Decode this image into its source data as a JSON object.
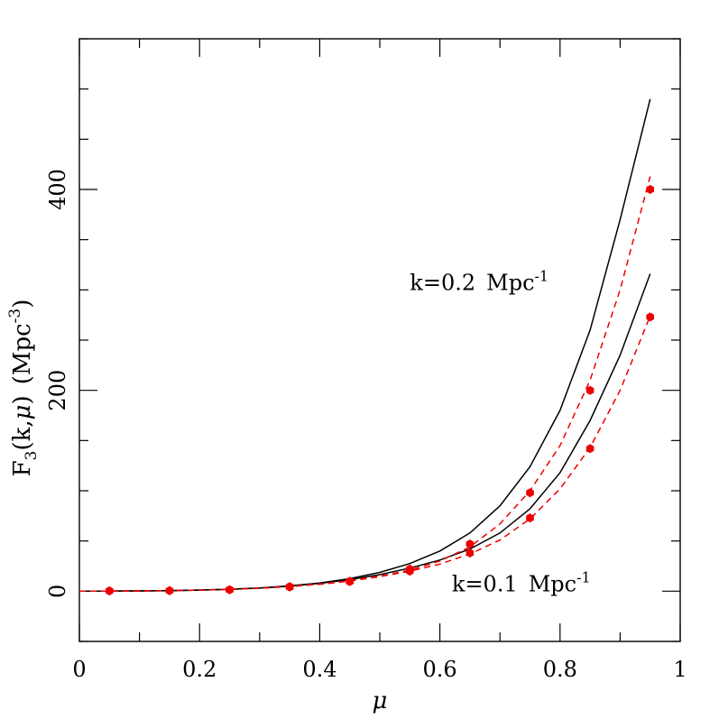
{
  "chart_data": {
    "type": "line",
    "xlabel": "μ",
    "ylabel_main": "F",
    "ylabel_sub": "3",
    "ylabel_args": "(k,",
    "ylabel_mu": "μ",
    "ylabel_close": ")",
    "ylabel_units": "(Mpc",
    "ylabel_units_exp": "-3",
    "ylabel_units_close": ")",
    "xlim": [
      0,
      1
    ],
    "ylim": [
      -50,
      550
    ],
    "x_ticks": [
      {
        "value": 0,
        "label": "0"
      },
      {
        "value": 0.2,
        "label": "0.2"
      },
      {
        "value": 0.4,
        "label": "0.4"
      },
      {
        "value": 0.6,
        "label": "0.6"
      },
      {
        "value": 0.8,
        "label": "0.8"
      },
      {
        "value": 1,
        "label": "1"
      }
    ],
    "x_minor_ticks": [
      0.1,
      0.3,
      0.5,
      0.7,
      0.9
    ],
    "y_ticks": [
      {
        "value": 0,
        "label": "0"
      },
      {
        "value": 200,
        "label": "200"
      },
      {
        "value": 400,
        "label": "400"
      }
    ],
    "y_minor_ticks": [
      -50,
      50,
      100,
      150,
      250,
      300,
      350,
      450,
      500,
      550
    ],
    "series": [
      {
        "kind": "line",
        "style": "solid",
        "color": "#000000",
        "x": [
          0.0,
          0.05,
          0.1,
          0.15,
          0.2,
          0.25,
          0.3,
          0.35,
          0.4,
          0.45,
          0.5,
          0.55,
          0.6,
          0.65,
          0.7,
          0.75,
          0.8,
          0.85,
          0.9,
          0.95
        ],
        "y": [
          0.0,
          0.1,
          0.3,
          0.6,
          1.2,
          2.0,
          3.3,
          5.3,
          8.2,
          12.5,
          18.7,
          27.5,
          40,
          58,
          85,
          124,
          180,
          260,
          370,
          490
        ]
      },
      {
        "kind": "line",
        "style": "solid",
        "color": "#000000",
        "x": [
          0.0,
          0.05,
          0.1,
          0.15,
          0.2,
          0.25,
          0.3,
          0.35,
          0.4,
          0.45,
          0.5,
          0.55,
          0.6,
          0.65,
          0.7,
          0.75,
          0.8,
          0.85,
          0.9,
          0.95
        ],
        "y": [
          0.0,
          0.1,
          0.3,
          0.6,
          1.1,
          1.9,
          3.1,
          5.0,
          7.8,
          11.5,
          16.5,
          23,
          31,
          42,
          58,
          82,
          118,
          170,
          235,
          316
        ]
      },
      {
        "kind": "line",
        "style": "dashed",
        "color": "#ee0000",
        "x": [
          0.0,
          0.05,
          0.1,
          0.15,
          0.2,
          0.25,
          0.3,
          0.35,
          0.4,
          0.45,
          0.5,
          0.55,
          0.6,
          0.65,
          0.7,
          0.75,
          0.8,
          0.85,
          0.9,
          0.95
        ],
        "y": [
          0.0,
          0.1,
          0.3,
          0.6,
          1.1,
          1.9,
          3.0,
          4.8,
          7.2,
          10.5,
          15,
          21,
          30,
          44,
          67,
          100,
          145,
          210,
          300,
          413
        ]
      },
      {
        "kind": "line",
        "style": "dashed",
        "color": "#ee0000",
        "x": [
          0.0,
          0.05,
          0.1,
          0.15,
          0.2,
          0.25,
          0.3,
          0.35,
          0.4,
          0.45,
          0.5,
          0.55,
          0.6,
          0.65,
          0.7,
          0.75,
          0.8,
          0.85,
          0.9,
          0.95
        ],
        "y": [
          0.0,
          0.1,
          0.3,
          0.6,
          1.0,
          1.8,
          2.9,
          4.6,
          6.9,
          10,
          14.5,
          20,
          27,
          37,
          51,
          72,
          102,
          143,
          200,
          274
        ]
      },
      {
        "kind": "scatter",
        "color": "#ee0000",
        "x": [
          0.05,
          0.15,
          0.25,
          0.35,
          0.45,
          0.55,
          0.65,
          0.75,
          0.85,
          0.95
        ],
        "y": [
          0.3,
          0.6,
          1.5,
          4.5,
          10,
          22,
          47,
          98,
          200,
          400
        ]
      },
      {
        "kind": "scatter",
        "color": "#ee0000",
        "x": [
          0.05,
          0.15,
          0.25,
          0.35,
          0.45,
          0.55,
          0.65,
          0.75,
          0.85,
          0.95
        ],
        "y": [
          0.3,
          0.6,
          1.4,
          4.2,
          9.5,
          20,
          38,
          73,
          142,
          273
        ]
      }
    ],
    "annotations": [
      {
        "main": "k=0.2",
        "units": "Mpc",
        "exp": "-1",
        "x": 0.55,
        "y": 300
      },
      {
        "main": "k=0.1",
        "units": "Mpc",
        "exp": "-1",
        "x": 0.62,
        "y": 0
      }
    ]
  }
}
